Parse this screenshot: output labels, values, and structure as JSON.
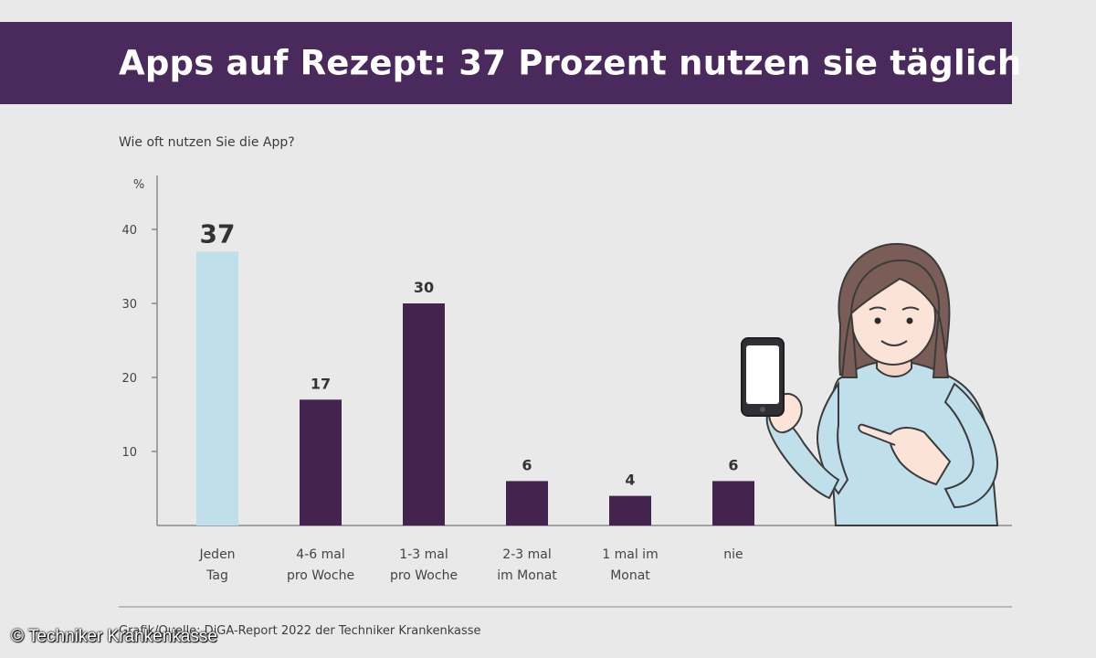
{
  "title": "Apps auf Rezept: 37 Prozent nutzen sie täglich",
  "question": "Wie oft nutzen Sie die App?",
  "source": "Grafik/Quelle: DiGA-Report 2022 der Techniker Krankenkasse",
  "copyright": "© Techniker Krankenkasse",
  "colors": {
    "header_bg": "#4a2a5c",
    "bar_dark": "#44244f",
    "bar_highlight": "#bfe0ea",
    "page_bg": "#e9e9ea"
  },
  "chart_data": {
    "type": "bar",
    "ylabel": "%",
    "ylim": [
      0,
      47.5
    ],
    "yticks": [
      10,
      20,
      30,
      40
    ],
    "grid": false,
    "categories": [
      [
        "Jeden",
        "Tag"
      ],
      [
        "4-6 mal",
        "pro Woche"
      ],
      [
        "1-3 mal",
        "pro Woche"
      ],
      [
        "2-3 mal",
        "im Monat"
      ],
      [
        "1 mal im",
        "Monat"
      ],
      [
        "nie"
      ]
    ],
    "values": [
      37,
      17,
      30,
      6,
      4,
      6
    ],
    "highlight_index": 0
  }
}
